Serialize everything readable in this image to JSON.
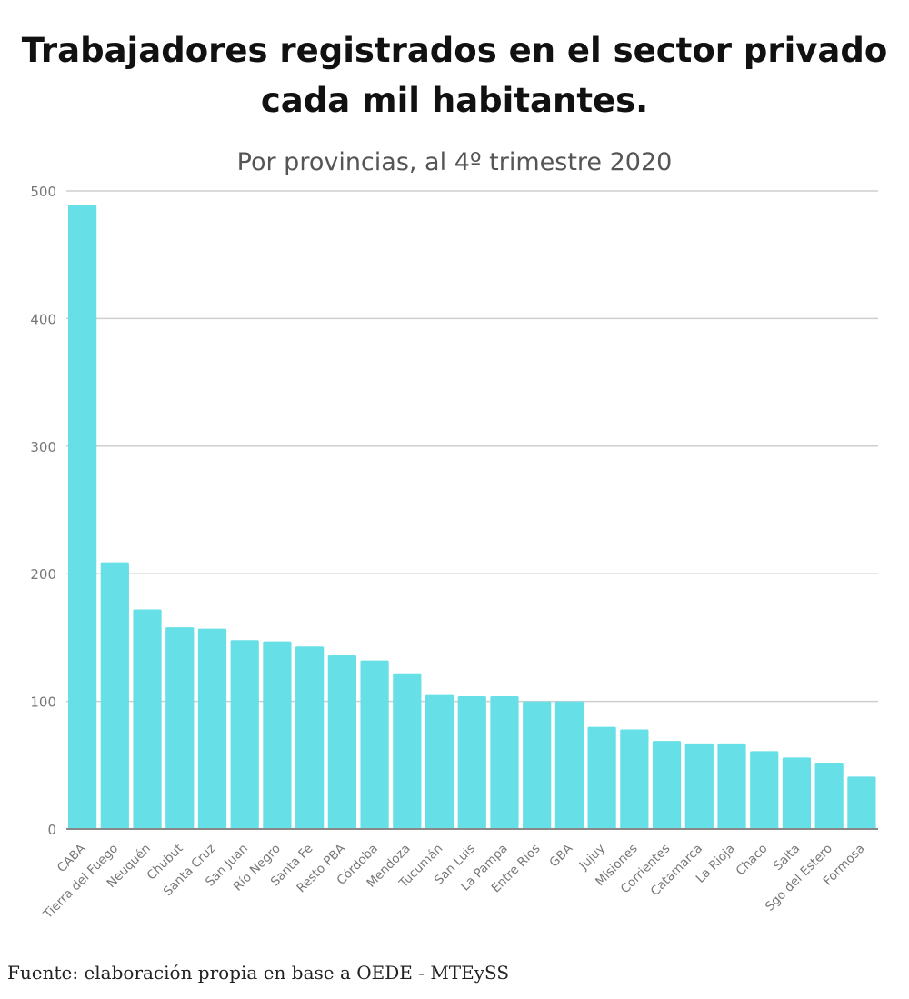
{
  "chart_data": {
    "type": "bar",
    "title": "Trabajadores registrados en el sector privado cada mil habitantes.",
    "subtitle": "Por provincias, al 4º trimestre 2020",
    "xlabel": "",
    "ylabel": "",
    "ylim": [
      0,
      500
    ],
    "yticks": [
      0,
      100,
      200,
      300,
      400,
      500
    ],
    "grid": true,
    "bar_color": "#67dfe6",
    "categories": [
      "CABA",
      "Tierra del Fuego",
      "Neuquén",
      "Chubut",
      "Santa Cruz",
      "San Juan",
      "Río Negro",
      "Santa Fe",
      "Resto PBA",
      "Córdoba",
      "Mendoza",
      "Tucumán",
      "San Luis",
      "La Pampa",
      "Entre Ríos",
      "GBA",
      "Jujuy",
      "Misiones",
      "Corrientes",
      "Catamarca",
      "La Rioja",
      "Chaco",
      "Salta",
      "Sgo del Estero",
      "Formosa"
    ],
    "values": [
      489,
      209,
      172,
      158,
      157,
      148,
      147,
      143,
      136,
      132,
      122,
      105,
      104,
      104,
      100,
      100,
      80,
      78,
      69,
      67,
      67,
      61,
      56,
      52,
      41
    ]
  },
  "source": "Fuente: elaboración propia en base a OEDE - MTEySS"
}
